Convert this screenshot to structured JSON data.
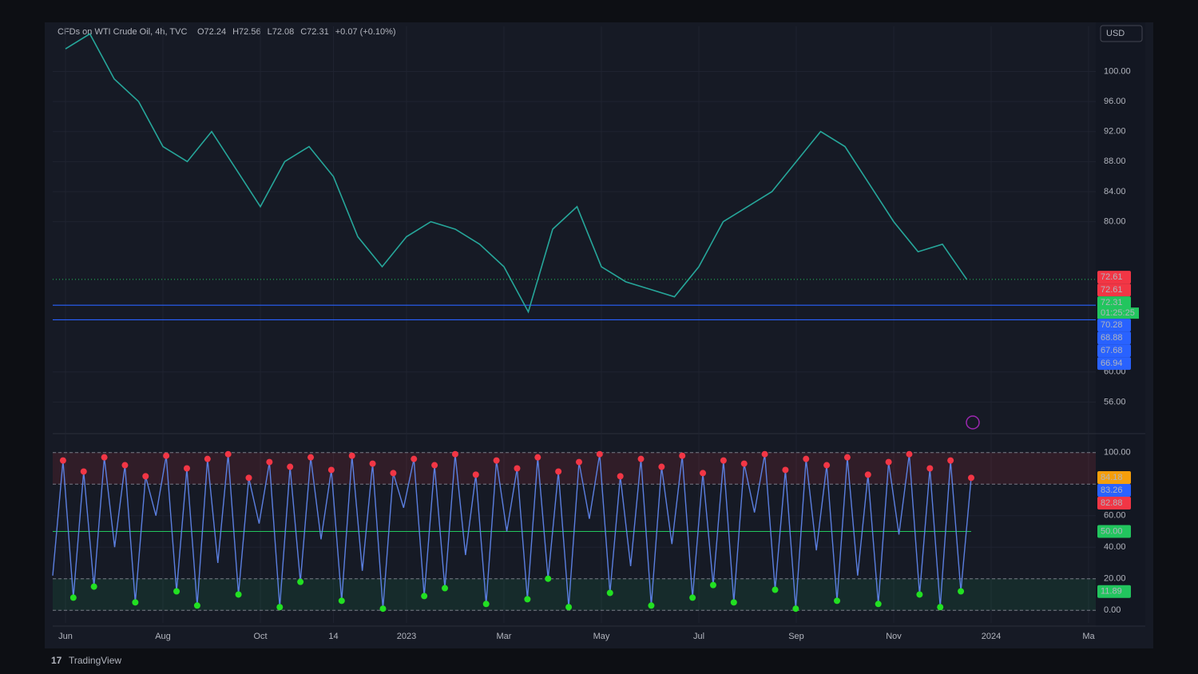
{
  "chart_data": [
    {
      "type": "line",
      "title": "CFDs on WTI Crude Oil, 4h, TVC",
      "ohlc": [
        "O72.24",
        "H72.56",
        "L72.08",
        "C72.31",
        "+0.07 (+0.10%)"
      ],
      "currency": "USD",
      "categories": [
        "Jun",
        null,
        null,
        null,
        "Aug",
        null,
        null,
        null,
        "Oct",
        null,
        null,
        "14",
        null,
        null,
        "2023",
        null,
        null,
        null,
        "Mar",
        null,
        null,
        null,
        "May",
        null,
        null,
        null,
        "Jul",
        null,
        null,
        null,
        "Sep",
        null,
        null,
        null,
        "Nov",
        null,
        null,
        null,
        "2024",
        null,
        null,
        null,
        "Ma"
      ],
      "values": [
        103,
        105,
        99,
        96,
        90,
        88,
        92,
        87,
        82,
        88,
        90,
        86,
        78,
        74,
        78,
        80,
        79,
        77,
        74,
        68,
        79,
        82,
        74,
        72,
        71,
        70,
        74,
        80,
        82,
        84,
        88,
        92,
        90,
        85,
        80,
        76,
        77,
        72.31,
        null,
        null,
        null,
        null,
        null
      ],
      "color": "#26a69a",
      "ylim": [
        52,
        106
      ],
      "yticks": [
        {
          "value": 56,
          "label": "56.00"
        },
        {
          "value": 60,
          "label": "60.00"
        },
        {
          "value": 80,
          "label": "80.00"
        },
        {
          "value": 84,
          "label": "84.00"
        },
        {
          "value": 88,
          "label": "88.00"
        },
        {
          "value": 92,
          "label": "92.00"
        },
        {
          "value": 96,
          "label": "96.00"
        },
        {
          "value": 100,
          "label": "100.00"
        }
      ],
      "hlines": [
        68.88,
        66.94
      ],
      "badges": [
        {
          "value": 72.61,
          "color": "#f23645"
        },
        {
          "value": 72.61,
          "color": "#f23645"
        },
        {
          "value": 72.31,
          "color": "#22c55e"
        },
        {
          "value": 70.28,
          "color": "#2962ff"
        },
        {
          "value": 68.88,
          "color": "#2962ff"
        },
        {
          "value": 67.68,
          "color": "#2962ff"
        },
        {
          "value": 66.94,
          "color": "#2962ff"
        }
      ],
      "countdown": "01:25:25"
    },
    {
      "type": "line",
      "values": [
        22,
        95,
        8,
        88,
        15,
        97,
        40,
        92,
        5,
        85,
        60,
        98,
        12,
        90,
        3,
        96,
        30,
        99,
        10,
        84,
        55,
        94,
        2,
        91,
        18,
        97,
        45,
        89,
        6,
        98,
        25,
        93,
        1,
        87,
        65,
        96,
        9,
        92,
        14,
        99,
        35,
        86,
        4,
        95,
        50,
        90,
        7,
        97,
        20,
        88,
        2,
        94,
        58,
        99,
        11,
        85,
        28,
        96,
        3,
        91,
        42,
        98,
        8,
        87,
        16,
        95,
        5,
        93,
        62,
        99,
        13,
        89,
        1,
        96,
        38,
        92,
        6,
        97,
        22,
        86,
        4,
        94,
        48,
        99,
        10,
        90,
        2,
        95,
        12,
        84
      ],
      "color": "#5b7fe0",
      "overbought_color": "#f23645",
      "oversold_color": "#22e022",
      "ylim": [
        -8,
        110
      ],
      "yticks": [
        {
          "value": 0,
          "label": "0.00"
        },
        {
          "value": 20,
          "label": "20.00"
        },
        {
          "value": 40,
          "label": "40.00"
        },
        {
          "value": 60,
          "label": "60.00"
        },
        {
          "value": 100,
          "label": "100.00"
        }
      ],
      "levels": [
        100,
        80,
        20,
        0
      ],
      "midline": 50,
      "badges": [
        {
          "value": 84.18,
          "color": "#f59e0b"
        },
        {
          "value": 83.26,
          "color": "#2962ff"
        },
        {
          "value": 82.88,
          "color": "#f23645"
        },
        {
          "value": 50,
          "label": "50.00",
          "color": "#22c55e"
        },
        {
          "value": 11.89,
          "color": "#22c55e"
        }
      ]
    }
  ],
  "footer": {
    "brand": "TradingView"
  }
}
